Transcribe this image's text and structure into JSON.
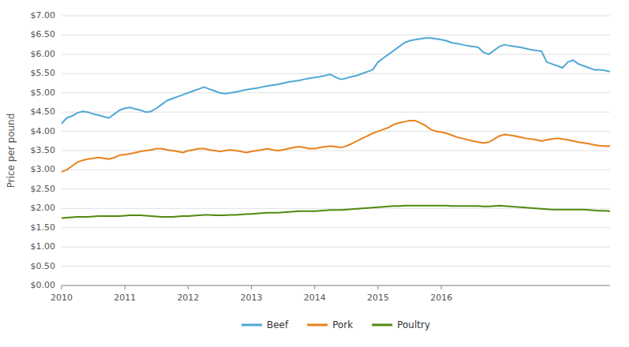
{
  "chart_data": {
    "type": "line",
    "ylabel": "Price per pound",
    "x": [
      2010,
      2010.0833333333,
      2010.1666666667,
      2010.25,
      2010.3333333333,
      2010.4166666667,
      2010.5,
      2010.5833333333,
      2010.6666666667,
      2010.75,
      2010.8333333333,
      2010.9166666667,
      2011,
      2011.0833333333,
      2011.1666666667,
      2011.25,
      2011.3333333333,
      2011.4166666667,
      2011.5,
      2011.5833333333,
      2011.6666666667,
      2011.75,
      2011.8333333333,
      2011.9166666667,
      2012,
      2012.0833333333,
      2012.1666666667,
      2012.25,
      2012.3333333333,
      2012.4166666667,
      2012.5,
      2012.5833333333,
      2012.6666666667,
      2012.75,
      2012.8333333333,
      2012.9166666667,
      2013,
      2013.0833333333,
      2013.1666666667,
      2013.25,
      2013.3333333333,
      2013.4166666667,
      2013.5,
      2013.5833333333,
      2013.6666666667,
      2013.75,
      2013.8333333333,
      2013.9166666667,
      2014,
      2014.0833333333,
      2014.1666666667,
      2014.25,
      2014.3333333333,
      2014.4166666667,
      2014.5,
      2014.5833333333,
      2014.6666666667,
      2014.75,
      2014.8333333333,
      2014.9166666667,
      2015,
      2015.0833333333,
      2015.1666666667,
      2015.25,
      2015.3333333333,
      2015.4166666667,
      2015.5,
      2015.5833333333,
      2015.6666666667,
      2015.75,
      2015.8333333333,
      2015.9166666667,
      2016,
      2016.0833333333,
      2016.1666666667,
      2016.25,
      2016.3333333333,
      2016.4166666667,
      2016.5,
      2016.5833333333,
      2016.6666666667,
      2016.75,
      2016.8333333333,
      2016.9166666667,
      2017,
      2017.0833333333,
      2017.1666666667,
      2017.25,
      2017.3333333333,
      2017.4166666667,
      2017.5,
      2017.5833333333,
      2017.6666666667,
      2017.75,
      2017.8333333333,
      2017.9166666667,
      2018,
      2018.0833333333,
      2018.1666666667,
      2018.25,
      2018.3333333333,
      2018.4166666667,
      2018.5,
      2018.5833333333,
      2018.6666666667
    ],
    "series": [
      {
        "name": "Beef",
        "color": "#4FA8D5",
        "values": [
          4.2,
          4.35,
          4.4,
          4.48,
          4.52,
          4.5,
          4.45,
          4.42,
          4.38,
          4.35,
          4.45,
          4.55,
          4.6,
          4.62,
          4.58,
          4.55,
          4.5,
          4.52,
          4.6,
          4.7,
          4.8,
          4.85,
          4.9,
          4.95,
          5.0,
          5.05,
          5.1,
          5.15,
          5.1,
          5.05,
          5.0,
          4.98,
          5.0,
          5.02,
          5.05,
          5.08,
          5.1,
          5.12,
          5.15,
          5.18,
          5.2,
          5.22,
          5.25,
          5.28,
          5.3,
          5.32,
          5.35,
          5.38,
          5.4,
          5.42,
          5.45,
          5.48,
          5.4,
          5.35,
          5.38,
          5.42,
          5.45,
          5.5,
          5.55,
          5.6,
          5.8,
          5.9,
          6.0,
          6.1,
          6.2,
          6.3,
          6.35,
          6.38,
          6.4,
          6.42,
          6.42,
          6.4,
          6.38,
          6.35,
          6.3,
          6.28,
          6.25,
          6.22,
          6.2,
          6.18,
          6.05,
          6.0,
          6.1,
          6.2,
          6.25,
          6.22,
          6.2,
          6.18,
          6.15,
          6.12,
          6.1,
          6.08,
          5.8,
          5.75,
          5.7,
          5.65,
          5.8,
          5.85,
          5.75,
          5.7,
          5.65,
          5.6,
          5.6,
          5.58,
          5.55
        ]
      },
      {
        "name": "Pork",
        "color": "#E8821C",
        "values": [
          2.95,
          3.0,
          3.1,
          3.2,
          3.25,
          3.28,
          3.3,
          3.32,
          3.3,
          3.28,
          3.32,
          3.38,
          3.4,
          3.42,
          3.45,
          3.48,
          3.5,
          3.52,
          3.55,
          3.55,
          3.52,
          3.5,
          3.48,
          3.45,
          3.5,
          3.52,
          3.55,
          3.55,
          3.52,
          3.5,
          3.48,
          3.5,
          3.52,
          3.5,
          3.48,
          3.45,
          3.48,
          3.5,
          3.52,
          3.55,
          3.52,
          3.5,
          3.52,
          3.55,
          3.58,
          3.6,
          3.58,
          3.55,
          3.55,
          3.58,
          3.6,
          3.62,
          3.6,
          3.58,
          3.62,
          3.68,
          3.75,
          3.82,
          3.88,
          3.95,
          4.0,
          4.05,
          4.1,
          4.18,
          4.22,
          4.25,
          4.28,
          4.28,
          4.22,
          4.15,
          4.05,
          4.0,
          3.98,
          3.95,
          3.9,
          3.85,
          3.82,
          3.78,
          3.75,
          3.72,
          3.7,
          3.72,
          3.8,
          3.88,
          3.92,
          3.9,
          3.88,
          3.85,
          3.82,
          3.8,
          3.78,
          3.75,
          3.78,
          3.8,
          3.82,
          3.8,
          3.78,
          3.75,
          3.72,
          3.7,
          3.68,
          3.65,
          3.63,
          3.62,
          3.62
        ]
      },
      {
        "name": "Poultry",
        "color": "#4F8A10",
        "values": [
          1.75,
          1.76,
          1.77,
          1.78,
          1.78,
          1.78,
          1.79,
          1.8,
          1.8,
          1.8,
          1.8,
          1.8,
          1.81,
          1.82,
          1.82,
          1.82,
          1.81,
          1.8,
          1.79,
          1.78,
          1.78,
          1.78,
          1.79,
          1.8,
          1.8,
          1.81,
          1.82,
          1.83,
          1.83,
          1.82,
          1.82,
          1.82,
          1.83,
          1.83,
          1.84,
          1.85,
          1.86,
          1.87,
          1.88,
          1.89,
          1.89,
          1.89,
          1.9,
          1.91,
          1.92,
          1.93,
          1.93,
          1.93,
          1.93,
          1.94,
          1.95,
          1.96,
          1.96,
          1.96,
          1.97,
          1.98,
          1.99,
          2.0,
          2.01,
          2.02,
          2.03,
          2.04,
          2.05,
          2.06,
          2.06,
          2.07,
          2.07,
          2.07,
          2.07,
          2.07,
          2.07,
          2.07,
          2.07,
          2.07,
          2.06,
          2.06,
          2.06,
          2.06,
          2.06,
          2.06,
          2.05,
          2.05,
          2.06,
          2.07,
          2.06,
          2.05,
          2.04,
          2.03,
          2.02,
          2.01,
          2.0,
          1.99,
          1.98,
          1.97,
          1.97,
          1.97,
          1.97,
          1.97,
          1.97,
          1.97,
          1.96,
          1.95,
          1.94,
          1.94,
          1.93
        ]
      }
    ],
    "xlim": [
      2010,
      2018.6666666667
    ],
    "xticks": [
      2010,
      2011,
      2012,
      2013,
      2014,
      2015,
      2016
    ],
    "ylim": [
      0.0,
      7.0
    ],
    "yticks": [
      {
        "value": 0.0,
        "label": "$0.00"
      },
      {
        "value": 0.5,
        "label": "$0.50"
      },
      {
        "value": 1.0,
        "label": "$1.00"
      },
      {
        "value": 1.5,
        "label": "$1.50"
      },
      {
        "value": 2.0,
        "label": "$2.00"
      },
      {
        "value": 2.5,
        "label": "$2.50"
      },
      {
        "value": 3.0,
        "label": "$3.00"
      },
      {
        "value": 3.5,
        "label": "$3.50"
      },
      {
        "value": 4.0,
        "label": "$4.00"
      },
      {
        "value": 4.5,
        "label": "$4.50"
      },
      {
        "value": 5.0,
        "label": "$5.00"
      },
      {
        "value": 5.5,
        "label": "$5.50"
      },
      {
        "value": 6.0,
        "label": "$6.00"
      },
      {
        "value": 6.5,
        "label": "$6.50"
      },
      {
        "value": 7.0,
        "label": "$7.00"
      }
    ],
    "grid": true,
    "legend": "bottom"
  }
}
